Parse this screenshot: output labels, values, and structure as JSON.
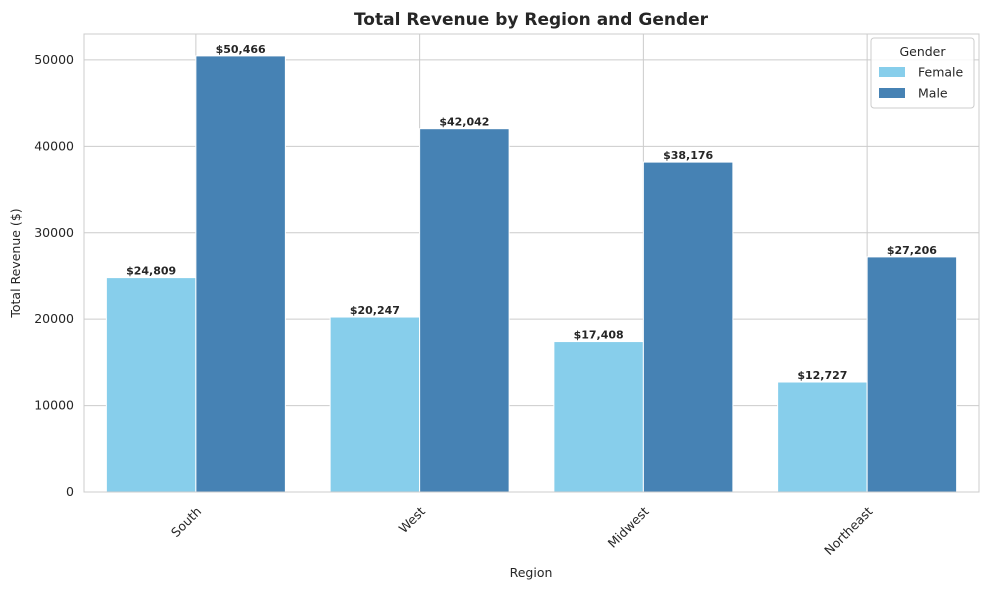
{
  "chart_data": {
    "type": "bar",
    "title": "Total Revenue by Region and Gender",
    "xlabel": "Region",
    "ylabel": "Total Revenue ($)",
    "categories": [
      "South",
      "West",
      "Midwest",
      "Northeast"
    ],
    "series": [
      {
        "name": "Female",
        "color": "#87ceeb",
        "values": [
          24809,
          20247,
          17408,
          12727
        ],
        "labels": [
          "$24,809",
          "$20,247",
          "$17,408",
          "$12,727"
        ]
      },
      {
        "name": "Male",
        "color": "#4682b4",
        "values": [
          50466,
          42042,
          38176,
          27206
        ],
        "labels": [
          "$50,466",
          "$42,042",
          "$38,176",
          "$27,206"
        ]
      }
    ],
    "ylim": [
      0,
      53000
    ],
    "yticks": [
      0,
      10000,
      20000,
      30000,
      40000,
      50000
    ],
    "ytick_labels": [
      "0",
      "10000",
      "20000",
      "30000",
      "40000",
      "50000"
    ],
    "grid": true,
    "legend": {
      "title": "Gender",
      "position": "top-right"
    }
  }
}
